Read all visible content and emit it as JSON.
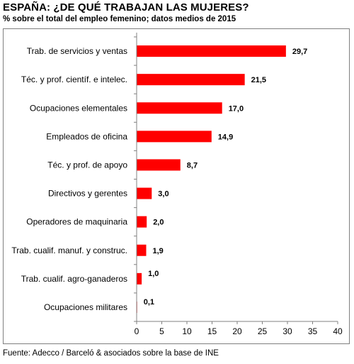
{
  "header": {
    "title": "ESPAÑA: ¿DE QUÉ TRABAJAN LAS MUJERES?",
    "subtitle": "% sobre el total del empleo femenino; datos medios de 2015"
  },
  "footer": {
    "source": "Fuente: Adecco / Barceló & asociados sobre la base de INE"
  },
  "colors": {
    "bar": "#ff0000",
    "axis": "#808080",
    "text": "#000000"
  },
  "chart_data": {
    "type": "bar",
    "orientation": "horizontal",
    "categories": [
      "Trab. de servicios y ventas",
      "Téc. y prof. científ. e intelec.",
      "Ocupaciones elementales",
      "Empleados de oficina",
      "Téc. y prof. de apoyo",
      "Directivos y gerentes",
      "Operadores de maquinaria",
      "Trab. cualif. manuf. y construc.",
      "Trab. cualif. agro-ganaderos",
      "Ocupaciones militares"
    ],
    "values": [
      29.7,
      21.5,
      17.0,
      14.9,
      8.7,
      3.0,
      2.0,
      1.9,
      1.0,
      0.1
    ],
    "value_labels": [
      "29,7",
      "21,5",
      "17,0",
      "14,9",
      "8,7",
      "3,0",
      "2,0",
      "1,9",
      "1,0",
      "0,1"
    ],
    "xlim": [
      0,
      40
    ],
    "xticks": [
      0,
      5,
      10,
      15,
      20,
      25,
      30,
      35,
      40
    ],
    "grid": false,
    "legend": "none"
  }
}
